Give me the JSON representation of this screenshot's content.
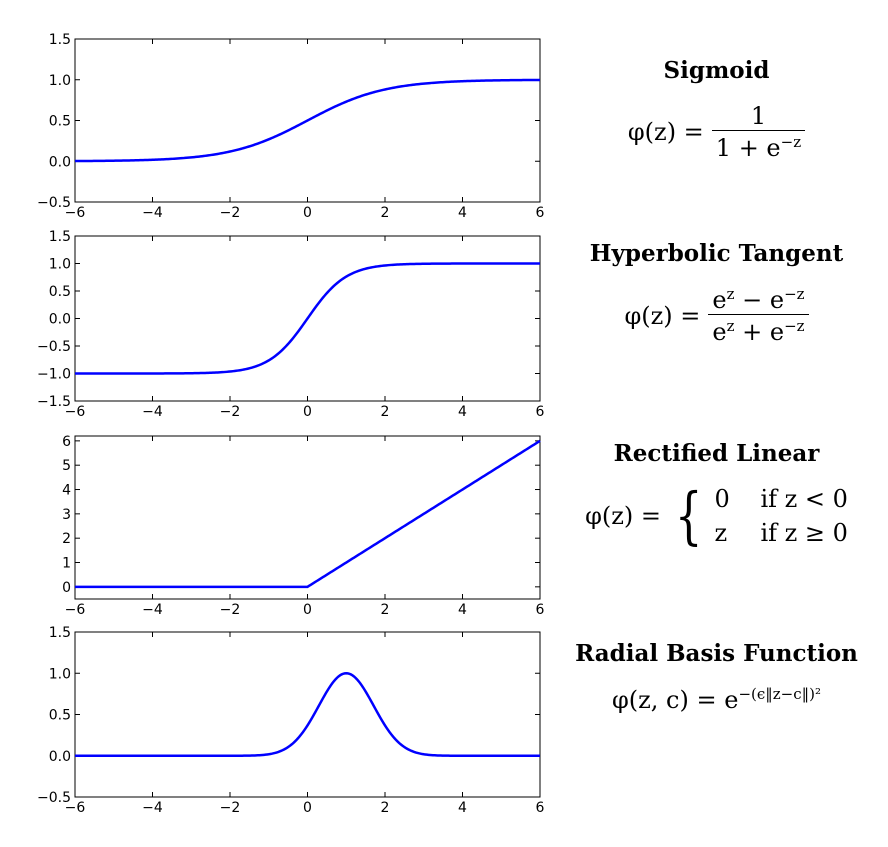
{
  "chart_data": [
    {
      "type": "line",
      "title": "Sigmoid",
      "function": "sigmoid",
      "formula": {
        "lhs": "φ(z) =",
        "numerator": "1",
        "denominator": "1 + e",
        "denominator_sup": "−z"
      },
      "xlim": [
        -6,
        6
      ],
      "ylim": [
        -0.5,
        1.5
      ],
      "xticks": [
        "−6",
        "−4",
        "−2",
        "0",
        "2",
        "4",
        "6"
      ],
      "yticks": [
        "−0.5",
        "0.0",
        "0.5",
        "1.0",
        "1.5"
      ],
      "ytick_values": [
        -0.5,
        0.0,
        0.5,
        1.0,
        1.5
      ],
      "series": [
        {
          "x": [
            -6,
            -4,
            -2,
            -1,
            0,
            1,
            2,
            4,
            6
          ],
          "y": [
            0.0025,
            0.018,
            0.119,
            0.269,
            0.5,
            0.731,
            0.881,
            0.982,
            0.9975
          ]
        }
      ]
    },
    {
      "type": "line",
      "title": "Hyperbolic Tangent",
      "function": "tanh",
      "formula": {
        "lhs": "φ(z) =",
        "num_a": "e",
        "num_a_sup": "z",
        "num_op": " − e",
        "num_b_sup": "−z",
        "den_a": "e",
        "den_a_sup": "z",
        "den_op": " + e",
        "den_b_sup": "−z"
      },
      "xlim": [
        -6,
        6
      ],
      "ylim": [
        -1.5,
        1.5
      ],
      "xticks": [
        "−6",
        "−4",
        "−2",
        "0",
        "2",
        "4",
        "6"
      ],
      "yticks": [
        "−1.5",
        "−1.0",
        "−0.5",
        "0.0",
        "0.5",
        "1.0",
        "1.5"
      ],
      "ytick_values": [
        -1.5,
        -1.0,
        -0.5,
        0.0,
        0.5,
        1.0,
        1.5
      ],
      "series": [
        {
          "x": [
            -6,
            -2,
            -1,
            0,
            1,
            2,
            6
          ],
          "y": [
            -1.0,
            -0.964,
            -0.762,
            0.0,
            0.762,
            0.964,
            1.0
          ]
        }
      ]
    },
    {
      "type": "line",
      "title": "Rectified Linear",
      "function": "relu",
      "formula": {
        "lhs": "φ(z) =",
        "case1_val": "0",
        "case1_cond": "if z < 0",
        "case2_val": "z",
        "case2_cond": "if z ≥ 0"
      },
      "xlim": [
        -6,
        6
      ],
      "ylim": [
        -0.5,
        6.2
      ],
      "xticks": [
        "−6",
        "−4",
        "−2",
        "0",
        "2",
        "4",
        "6"
      ],
      "yticks": [
        "0",
        "1",
        "2",
        "3",
        "4",
        "5",
        "6"
      ],
      "ytick_values": [
        0,
        1,
        2,
        3,
        4,
        5,
        6
      ],
      "series": [
        {
          "x": [
            -6,
            0,
            6
          ],
          "y": [
            0,
            0,
            6
          ]
        }
      ]
    },
    {
      "type": "line",
      "title": "Radial Basis Function",
      "function": "rbf",
      "formula": {
        "lhs": "φ(z, c) = e",
        "sup": "−(ϵ‖z−c‖)²"
      },
      "xlim": [
        -6,
        6
      ],
      "ylim": [
        -0.5,
        1.5
      ],
      "xticks": [
        "−6",
        "−4",
        "−2",
        "0",
        "2",
        "4",
        "6"
      ],
      "yticks": [
        "−0.5",
        "0.0",
        "0.5",
        "1.0",
        "1.5"
      ],
      "ytick_values": [
        -0.5,
        0.0,
        0.5,
        1.0,
        1.5
      ],
      "series": [
        {
          "x": [
            -6,
            -1,
            0,
            1,
            2,
            3,
            6
          ],
          "y": [
            0.0,
            0.018,
            0.368,
            1.0,
            0.368,
            0.018,
            0.0
          ]
        }
      ]
    }
  ],
  "colors": {
    "line": "#0000ff",
    "axis": "#000000"
  }
}
